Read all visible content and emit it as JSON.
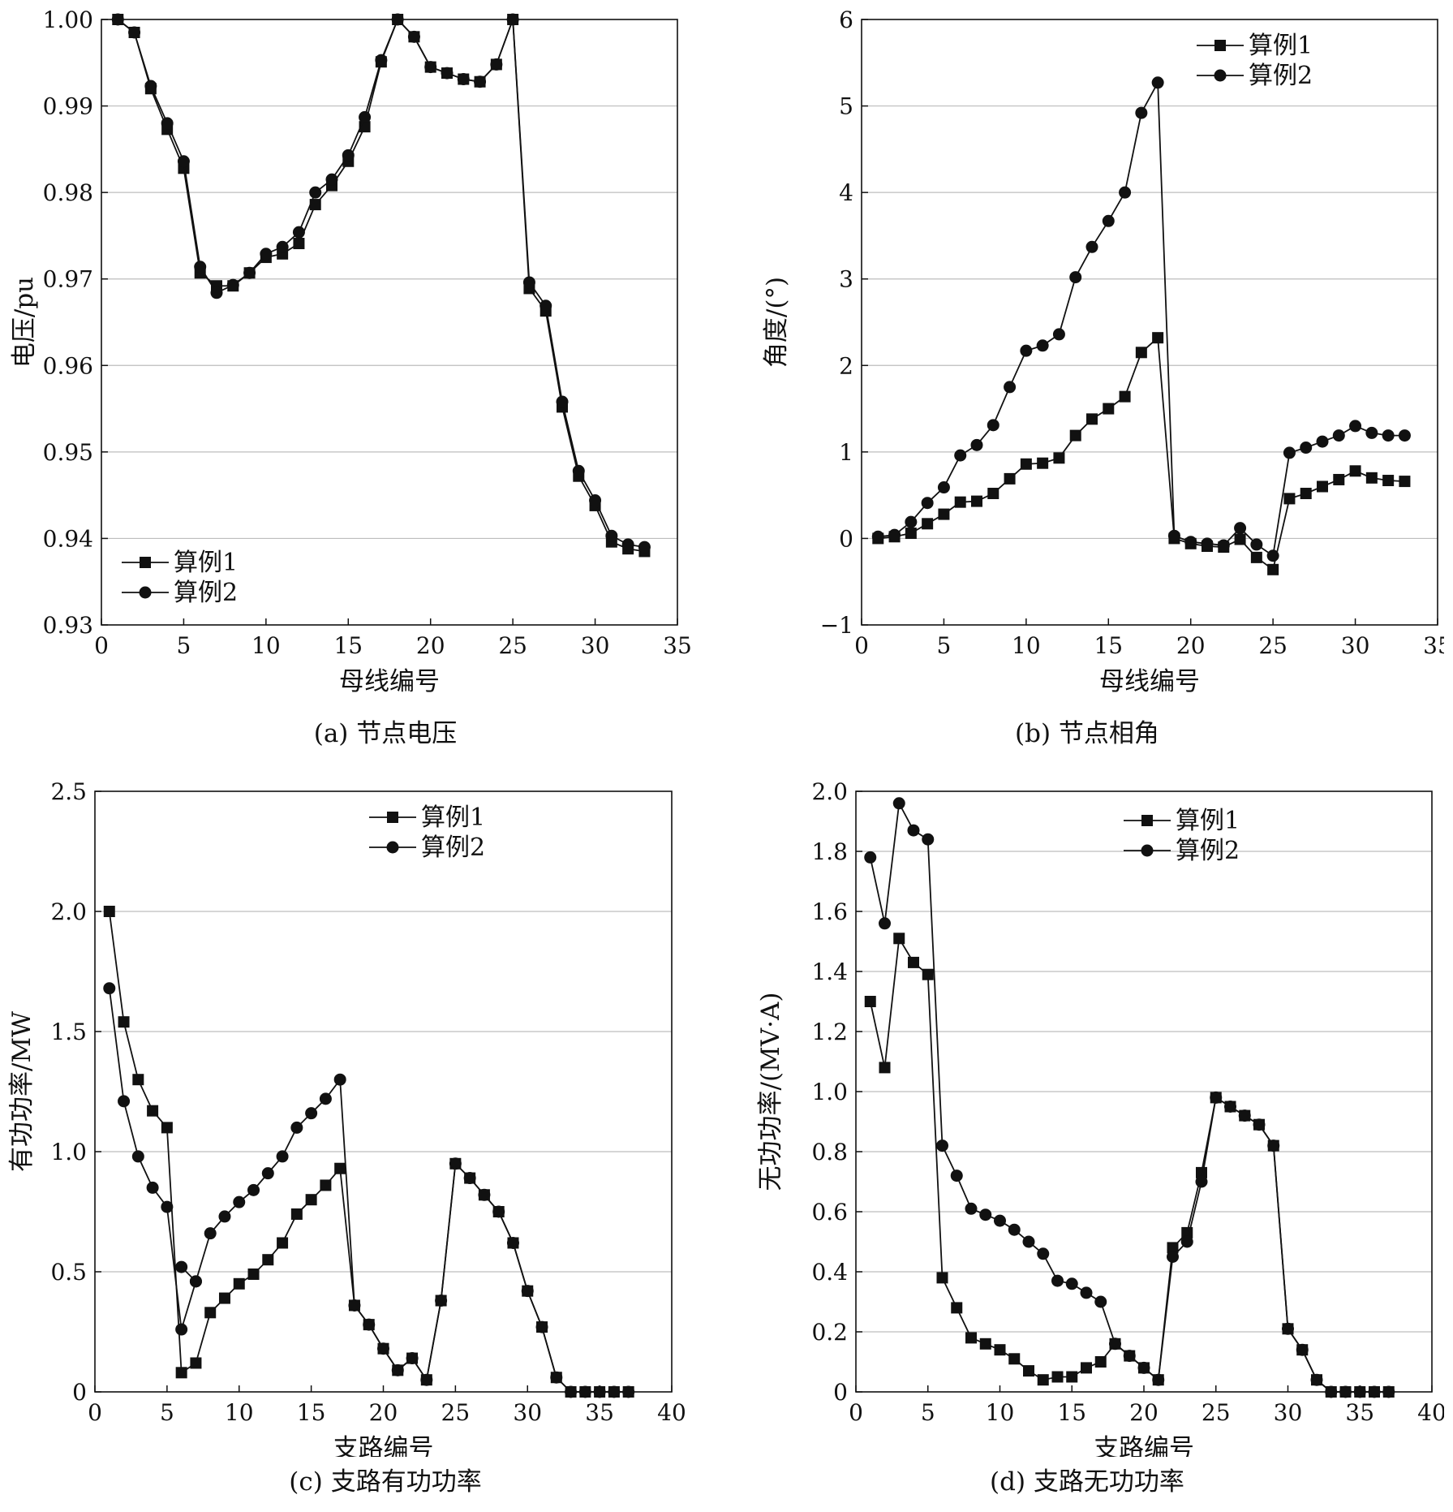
{
  "chart_data": [
    {
      "id": "a",
      "type": "line",
      "caption": "(a) 节点电压",
      "xlabel": "母线编号",
      "ylabel": "电压/pu",
      "xlim": [
        0,
        35
      ],
      "ylim": [
        0.93,
        1.0
      ],
      "xticks": [
        0,
        5,
        10,
        15,
        20,
        25,
        30,
        35
      ],
      "xtick_labels": [
        "0",
        "5",
        "10",
        "15",
        "20",
        "25",
        "30",
        "35"
      ],
      "yticks": [
        0.93,
        0.94,
        0.95,
        0.96,
        0.97,
        0.98,
        0.99,
        1.0
      ],
      "ytick_labels": [
        "0.93",
        "0.94",
        "0.95",
        "0.96",
        "0.97",
        "0.98",
        "0.99",
        "1.00"
      ],
      "grid": "horizontal",
      "legend": "bottom-left",
      "series": [
        {
          "name": "算例1",
          "marker": "square",
          "x": [
            1,
            2,
            3,
            4,
            5,
            6,
            7,
            8,
            9,
            10,
            11,
            12,
            13,
            14,
            15,
            16,
            17,
            18,
            19,
            20,
            21,
            22,
            23,
            24,
            25,
            26,
            27,
            28,
            29,
            30,
            31,
            32,
            33
          ],
          "y": [
            1.0,
            0.9985,
            0.992,
            0.9873,
            0.9828,
            0.9707,
            0.9692,
            0.9692,
            0.9707,
            0.9725,
            0.9729,
            0.9741,
            0.9786,
            0.9808,
            0.9836,
            0.9876,
            0.9951,
            1.0,
            0.998,
            0.9945,
            0.9938,
            0.9931,
            0.9928,
            0.9948,
            1.0,
            0.9689,
            0.9663,
            0.9552,
            0.9472,
            0.9438,
            0.9396,
            0.9388,
            0.9385
          ]
        },
        {
          "name": "算例2",
          "marker": "circle",
          "x": [
            1,
            2,
            3,
            4,
            5,
            6,
            7,
            8,
            9,
            10,
            11,
            12,
            13,
            14,
            15,
            16,
            17,
            18,
            19,
            20,
            21,
            22,
            23,
            24,
            25,
            26,
            27,
            28,
            29,
            30,
            31,
            32,
            33
          ],
          "y": [
            1.0,
            0.9985,
            0.9923,
            0.988,
            0.9836,
            0.9714,
            0.9684,
            0.9693,
            0.9707,
            0.9729,
            0.9737,
            0.9754,
            0.98,
            0.9815,
            0.9843,
            0.9887,
            0.9953,
            1.0,
            0.998,
            0.9945,
            0.9938,
            0.9931,
            0.9928,
            0.9948,
            1.0,
            0.9696,
            0.9669,
            0.9558,
            0.9478,
            0.9444,
            0.9403,
            0.9393,
            0.939
          ]
        }
      ]
    },
    {
      "id": "b",
      "type": "line",
      "caption": "(b) 节点相角",
      "xlabel": "母线编号",
      "ylabel": "角度/(°)",
      "xlim": [
        0,
        35
      ],
      "ylim": [
        -1,
        6
      ],
      "xticks": [
        0,
        5,
        10,
        15,
        20,
        25,
        30,
        35
      ],
      "xtick_labels": [
        "0",
        "5",
        "10",
        "15",
        "20",
        "25",
        "30",
        "35"
      ],
      "yticks": [
        -1,
        0,
        1,
        2,
        3,
        4,
        5,
        6
      ],
      "ytick_labels": [
        "−1",
        "0",
        "1",
        "2",
        "3",
        "4",
        "5",
        "6"
      ],
      "grid": "horizontal",
      "legend": "top-center",
      "series": [
        {
          "name": "算例1",
          "marker": "square",
          "x": [
            1,
            2,
            3,
            4,
            5,
            6,
            7,
            8,
            9,
            10,
            11,
            12,
            13,
            14,
            15,
            16,
            17,
            18,
            19,
            20,
            21,
            22,
            23,
            24,
            25,
            26,
            27,
            28,
            29,
            30,
            31,
            32,
            33
          ],
          "y": [
            0.0,
            0.02,
            0.06,
            0.17,
            0.28,
            0.42,
            0.43,
            0.52,
            0.69,
            0.86,
            0.87,
            0.93,
            1.19,
            1.38,
            1.5,
            1.64,
            2.15,
            2.32,
            0.0,
            -0.06,
            -0.09,
            -0.1,
            -0.01,
            -0.22,
            -0.36,
            0.46,
            0.52,
            0.6,
            0.68,
            0.78,
            0.7,
            0.67,
            0.66
          ]
        },
        {
          "name": "算例2",
          "marker": "circle",
          "x": [
            1,
            2,
            3,
            4,
            5,
            6,
            7,
            8,
            9,
            10,
            11,
            12,
            13,
            14,
            15,
            16,
            17,
            18,
            19,
            20,
            21,
            22,
            23,
            24,
            25,
            26,
            27,
            28,
            29,
            30,
            31,
            32,
            33
          ],
          "y": [
            0.02,
            0.04,
            0.19,
            0.41,
            0.59,
            0.96,
            1.08,
            1.31,
            1.75,
            2.17,
            2.23,
            2.36,
            3.02,
            3.37,
            3.67,
            4.0,
            4.92,
            5.27,
            0.03,
            -0.04,
            -0.06,
            -0.08,
            0.12,
            -0.07,
            -0.2,
            0.99,
            1.05,
            1.12,
            1.19,
            1.3,
            1.22,
            1.19,
            1.19
          ]
        }
      ]
    },
    {
      "id": "c",
      "type": "line",
      "caption": "(c) 支路有功功率",
      "xlabel": "支路编号",
      "ylabel": "有功功率/MW",
      "xlim": [
        0,
        40
      ],
      "ylim": [
        0,
        2.5
      ],
      "xticks": [
        0,
        5,
        10,
        15,
        20,
        25,
        30,
        35,
        40
      ],
      "xtick_labels": [
        "0",
        "5",
        "10",
        "15",
        "20",
        "25",
        "30",
        "35",
        "40"
      ],
      "yticks": [
        0,
        0.5,
        1.0,
        1.5,
        2.0,
        2.5
      ],
      "ytick_labels": [
        "0",
        "0.5",
        "1.0",
        "1.5",
        "2.0",
        "2.5"
      ],
      "grid": "horizontal",
      "legend": "top-center",
      "series": [
        {
          "name": "算例1",
          "marker": "square",
          "x": [
            1,
            2,
            3,
            4,
            5,
            6,
            7,
            8,
            9,
            10,
            11,
            12,
            13,
            14,
            15,
            16,
            17,
            18,
            19,
            20,
            21,
            22,
            23,
            24,
            25,
            26,
            27,
            28,
            29,
            30,
            31,
            32,
            33,
            34,
            35,
            36,
            37
          ],
          "y": [
            2.0,
            1.54,
            1.3,
            1.17,
            1.1,
            0.08,
            0.12,
            0.33,
            0.39,
            0.45,
            0.49,
            0.55,
            0.62,
            0.74,
            0.8,
            0.86,
            0.93,
            0.36,
            0.28,
            0.18,
            0.09,
            0.14,
            0.05,
            0.38,
            0.95,
            0.89,
            0.82,
            0.75,
            0.62,
            0.42,
            0.27,
            0.06,
            0.0,
            0.0,
            0.0,
            0.0,
            0.0
          ]
        },
        {
          "name": "算例2",
          "marker": "circle",
          "x": [
            1,
            2,
            3,
            4,
            5,
            6,
            7
          ],
          "y": [
            1.68,
            1.21,
            0.98,
            0.85,
            0.77,
            0.26,
            0.46
          ]
        },
        {
          "name": "",
          "marker": "circle",
          "x": [
            6,
            7,
            8,
            9,
            10,
            11,
            12,
            13,
            14,
            15,
            16,
            17,
            18,
            19,
            20,
            21,
            22,
            23,
            24,
            25,
            26,
            27,
            28,
            29,
            30,
            31,
            32,
            33,
            34,
            35,
            36,
            37
          ],
          "y": [
            0.52,
            0.46,
            0.66,
            0.73,
            0.79,
            0.84,
            0.91,
            0.98,
            1.1,
            1.16,
            1.22,
            1.3,
            0.36,
            0.28,
            0.18,
            0.09,
            0.14,
            0.05,
            0.38,
            0.95,
            0.89,
            0.82,
            0.75,
            0.62,
            0.42,
            0.27,
            0.06,
            0.0,
            0.0,
            0.0,
            0.0,
            0.0
          ]
        }
      ]
    },
    {
      "id": "d",
      "type": "line",
      "caption": "(d) 支路无功功率",
      "xlabel": "支路编号",
      "ylabel": "无功功率/(MV·A)",
      "xlim": [
        0,
        40
      ],
      "ylim": [
        0,
        2.0
      ],
      "xticks": [
        0,
        5,
        10,
        15,
        20,
        25,
        30,
        35,
        40
      ],
      "xtick_labels": [
        "0",
        "5",
        "10",
        "15",
        "20",
        "25",
        "30",
        "35",
        "40"
      ],
      "yticks": [
        0,
        0.2,
        0.4,
        0.6,
        0.8,
        1.0,
        1.2,
        1.4,
        1.6,
        1.8,
        2.0
      ],
      "ytick_labels": [
        "0",
        "0.2",
        "0.4",
        "0.6",
        "0.8",
        "1.0",
        "1.2",
        "1.4",
        "1.6",
        "1.8",
        "2.0"
      ],
      "grid": "horizontal",
      "legend": "top-center",
      "series": [
        {
          "name": "算例1",
          "marker": "square",
          "x": [
            1,
            2,
            3,
            4,
            5,
            6,
            7,
            8,
            9,
            10,
            11,
            12,
            13,
            14,
            15,
            16,
            17,
            18,
            19,
            20,
            21,
            22,
            23,
            24,
            25,
            26,
            27,
            28,
            29,
            30,
            31,
            32,
            33,
            34,
            35,
            36,
            37
          ],
          "y": [
            1.3,
            1.08,
            1.51,
            1.43,
            1.39,
            0.38,
            0.28,
            0.18,
            0.16,
            0.14,
            0.11,
            0.07,
            0.04,
            0.05,
            0.05,
            0.08,
            0.1,
            0.16,
            0.12,
            0.08,
            0.04,
            0.48,
            0.53,
            0.73,
            0.98,
            0.95,
            0.92,
            0.89,
            0.82,
            0.21,
            0.14,
            0.04,
            0.0,
            0.0,
            0.0,
            0.0,
            0.0
          ]
        },
        {
          "name": "算例2",
          "marker": "circle",
          "x": [
            1,
            2,
            3,
            4,
            5,
            6,
            7,
            8,
            9,
            10,
            11,
            12,
            13,
            14,
            15,
            16,
            17,
            18,
            19,
            20,
            21,
            22,
            23,
            24,
            25,
            26,
            27,
            28,
            29,
            30,
            31,
            32,
            33,
            34,
            35,
            36,
            37
          ],
          "y": [
            1.78,
            1.56,
            1.96,
            1.87,
            1.84,
            0.82,
            0.72,
            0.61,
            0.59,
            0.57,
            0.54,
            0.5,
            0.46,
            0.37,
            0.36,
            0.33,
            0.3,
            0.16,
            0.12,
            0.08,
            0.04,
            0.45,
            0.5,
            0.7,
            0.98,
            0.95,
            0.92,
            0.89,
            0.82,
            0.21,
            0.14,
            0.04,
            0.0,
            0.0,
            0.0,
            0.0,
            0.0
          ]
        }
      ]
    }
  ]
}
